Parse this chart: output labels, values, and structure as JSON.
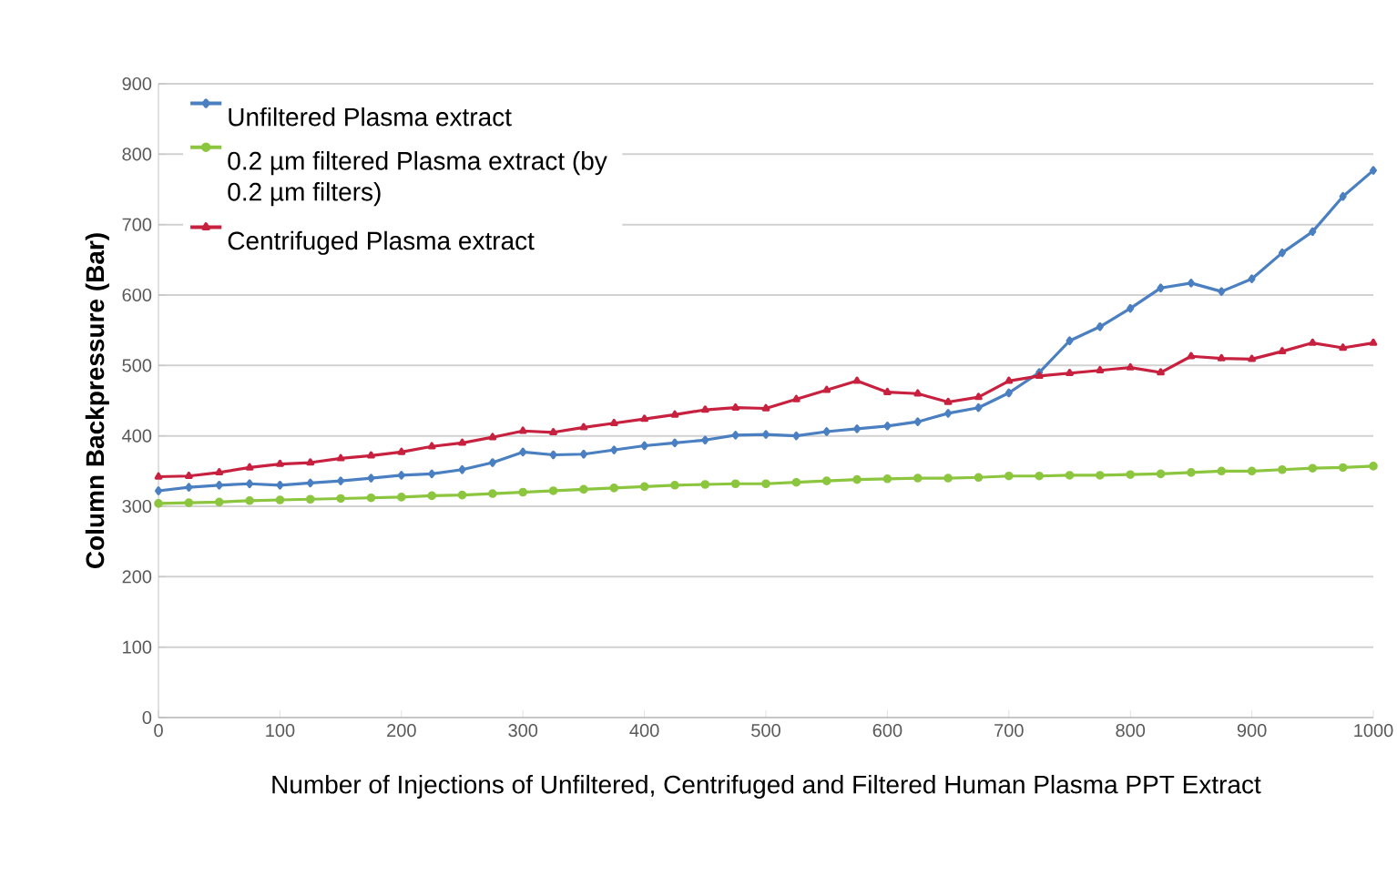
{
  "chart_data": {
    "type": "line",
    "xlabel": "Number of Injections of Unfiltered, Centrifuged and Filtered Human Plasma PPT Extract",
    "ylabel": "Column Backpressure (Bar)",
    "x": [
      0,
      25,
      50,
      75,
      100,
      125,
      150,
      175,
      200,
      225,
      250,
      275,
      300,
      325,
      350,
      375,
      400,
      425,
      450,
      475,
      500,
      525,
      550,
      575,
      600,
      625,
      650,
      675,
      700,
      725,
      750,
      775,
      800,
      825,
      850,
      875,
      900,
      925,
      950,
      975,
      1000
    ],
    "series": [
      {
        "name": "Unfiltered Plasma extract",
        "color": "#4a7fc1",
        "marker": "diamond",
        "values": [
          322,
          327,
          330,
          332,
          330,
          333,
          336,
          340,
          344,
          346,
          352,
          362,
          377,
          373,
          374,
          380,
          386,
          390,
          394,
          401,
          402,
          400,
          406,
          410,
          414,
          420,
          432,
          440,
          461,
          490,
          535,
          555,
          581,
          610,
          617,
          605,
          623,
          660,
          690,
          740,
          777
        ]
      },
      {
        "name": "0.2 µm filtered Plasma extract (by 0.2 µm filters)",
        "color": "#8cc63f",
        "marker": "circle",
        "values": [
          304,
          305,
          306,
          308,
          309,
          310,
          311,
          312,
          313,
          315,
          316,
          318,
          320,
          322,
          324,
          326,
          328,
          330,
          331,
          332,
          332,
          334,
          336,
          338,
          339,
          340,
          340,
          341,
          343,
          343,
          344,
          344,
          345,
          346,
          348,
          350,
          350,
          352,
          354,
          355,
          357
        ]
      },
      {
        "name": "Centrifuged Plasma extract",
        "color": "#c8203f",
        "marker": "triangle",
        "values": [
          342,
          343,
          348,
          355,
          360,
          362,
          368,
          372,
          377,
          385,
          390,
          398,
          407,
          405,
          412,
          418,
          424,
          430,
          437,
          440,
          439,
          452,
          465,
          478,
          462,
          460,
          448,
          455,
          478,
          485,
          489,
          493,
          497,
          490,
          513,
          510,
          509,
          520,
          532,
          525,
          532
        ]
      }
    ],
    "xlim": [
      0,
      1000
    ],
    "xticks": [
      0,
      100,
      200,
      300,
      400,
      500,
      600,
      700,
      800,
      900,
      1000
    ],
    "ylim": [
      0,
      900
    ],
    "yticks": [
      0,
      100,
      200,
      300,
      400,
      500,
      600,
      700,
      800,
      900
    ],
    "grid": "y",
    "legend": "top left"
  }
}
